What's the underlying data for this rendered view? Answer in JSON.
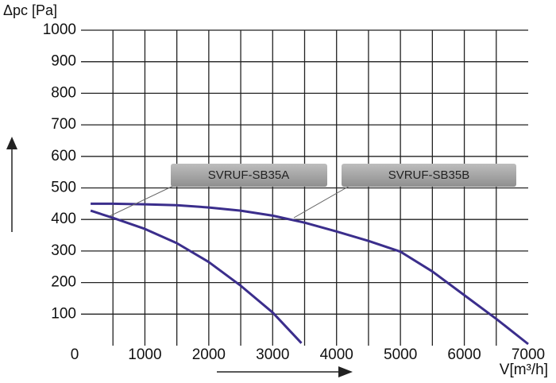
{
  "chart_data": {
    "type": "line",
    "y_label": "Δpc [Pa]",
    "x_label": "V[m³/h]",
    "xlim": [
      0,
      7000
    ],
    "ylim": [
      0,
      1000
    ],
    "xticks": [
      0,
      1000,
      2000,
      3000,
      4000,
      5000,
      6000,
      7000
    ],
    "yticks": [
      100,
      200,
      300,
      400,
      500,
      600,
      700,
      800,
      900,
      1000
    ],
    "x_gridlines": [
      500,
      1000,
      1500,
      2000,
      2500,
      3000,
      3500,
      4000,
      4500,
      5000,
      5500,
      6000,
      6500
    ],
    "grid": true,
    "series": [
      {
        "name": "SVRUF-SB35A",
        "color": "#3b2e8c",
        "x": [
          150,
          500,
          1000,
          1500,
          2000,
          2500,
          3000,
          3450
        ],
        "values": [
          428,
          405,
          370,
          325,
          265,
          190,
          105,
          8
        ]
      },
      {
        "name": "SVRUF-SB35B",
        "color": "#3b2e8c",
        "x": [
          150,
          500,
          1000,
          1500,
          2000,
          2500,
          3000,
          3500,
          4000,
          4500,
          5000,
          5500,
          6000,
          6500,
          7000
        ],
        "values": [
          450,
          450,
          448,
          445,
          438,
          428,
          412,
          390,
          362,
          332,
          298,
          235,
          160,
          85,
          5
        ]
      }
    ]
  }
}
